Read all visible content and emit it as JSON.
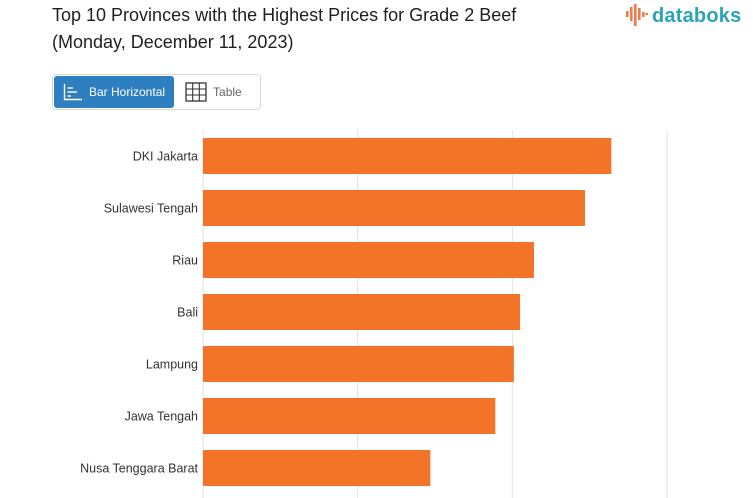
{
  "title_line1": "Top 10 Provinces with the Highest Prices for Grade 2 Beef",
  "title_line2": "(Monday, December 11, 2023)",
  "brand": {
    "name": "databoks",
    "logo_icon": "databoks-logo-icon",
    "accent": "#2aa4b8",
    "logo_color": "#ee7d4a"
  },
  "tabs": [
    {
      "label": "Bar Horizontal",
      "icon": "bar-chart-icon",
      "active": true
    },
    {
      "label": "Table",
      "icon": "table-grid-icon",
      "active": false
    }
  ],
  "colors": {
    "bar": "#f37329",
    "grid": "#e2e2e2",
    "tab_active": "#2e7fc0"
  },
  "chart_data": {
    "type": "bar",
    "orientation": "horizontal",
    "categories": [
      "DKI Jakarta",
      "Sulawesi Tengah",
      "Riau",
      "Bali",
      "Lampung",
      "Jawa Tengah",
      "Nusa Tenggara Barat"
    ],
    "values": [
      2.64,
      2.47,
      2.14,
      2.05,
      2.01,
      1.89,
      1.47
    ],
    "xlim": [
      0,
      3
    ],
    "grid": true,
    "title": "",
    "xlabel": "",
    "ylabel": ""
  }
}
